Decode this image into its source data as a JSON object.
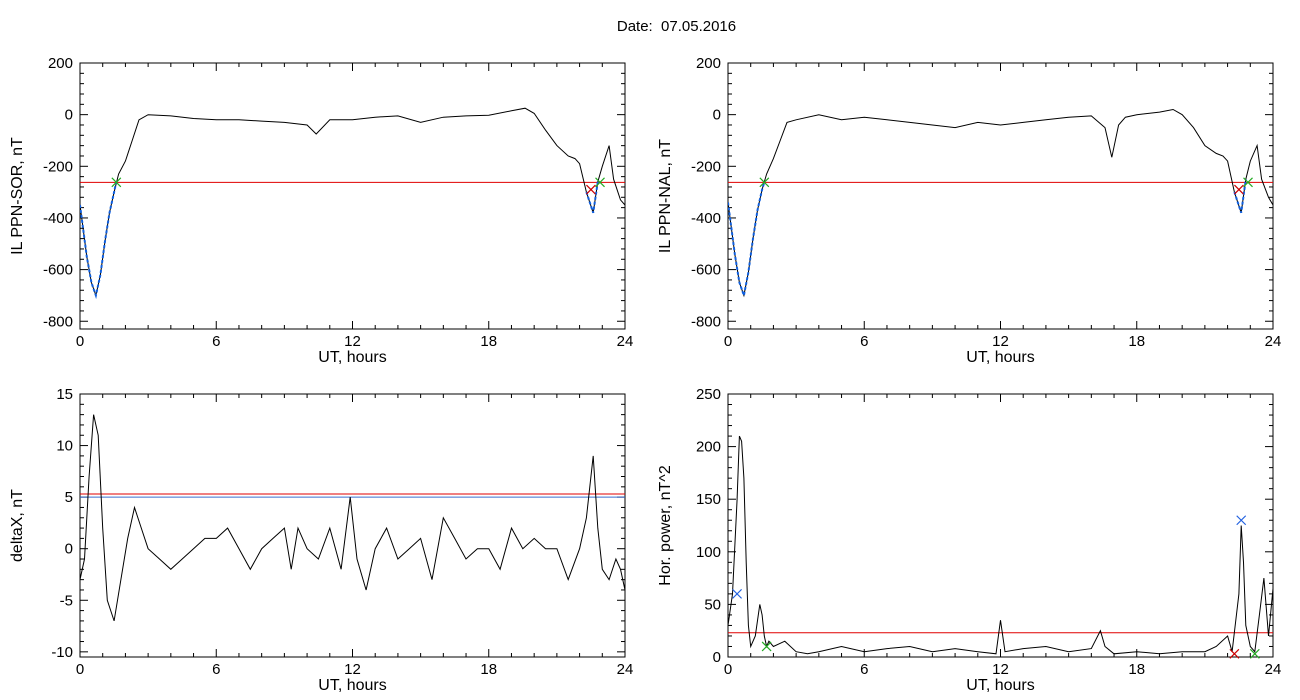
{
  "header": {
    "date_title": "Date:  07.05.2016"
  },
  "colors": {
    "line": "#000000",
    "threshold": "#e00000",
    "threshold2": "#3a6fd0",
    "highlight": "#1060e0",
    "marker_green": "#22aa22",
    "marker_red": "#cc0000",
    "marker_blue": "#2060e0"
  },
  "chart_data": [
    {
      "type": "line",
      "xlabel": "UT, hours",
      "ylabel": "IL PPN-SOR, nT",
      "xlim": [
        0,
        24
      ],
      "ylim": [
        -830,
        200
      ],
      "xticks": [
        0,
        6,
        12,
        18,
        24
      ],
      "yticks": [
        200,
        0,
        -200,
        -400,
        -600,
        -800
      ],
      "series": [
        {
          "x": [
            0,
            0.3,
            0.5,
            0.7,
            0.9,
            1.1,
            1.3,
            1.5,
            1.7,
            2.0,
            2.3,
            2.6,
            3,
            4,
            5,
            6,
            7,
            8,
            9,
            10,
            10.4,
            11,
            12,
            13,
            14,
            15,
            16,
            17,
            18,
            19,
            19.6,
            20,
            20.5,
            21,
            21.5,
            21.8,
            22,
            22.3,
            22.6,
            22.8,
            23,
            23.3,
            23.5,
            23.8,
            24
          ],
          "y": [
            -350,
            -550,
            -650,
            -700,
            -620,
            -490,
            -380,
            -300,
            -230,
            -180,
            -100,
            -20,
            0,
            -5,
            -15,
            -20,
            -20,
            -25,
            -30,
            -40,
            -75,
            -20,
            -20,
            -10,
            -5,
            -30,
            -10,
            -5,
            -2,
            15,
            25,
            5,
            -60,
            -120,
            -160,
            -170,
            -190,
            -300,
            -380,
            -260,
            -200,
            -120,
            -250,
            -330,
            -350
          ]
        }
      ],
      "highlight": {
        "x": [
          0,
          0.3,
          0.5,
          0.7,
          0.9,
          1.1,
          1.3,
          1.5,
          1.6
        ],
        "y": [
          -350,
          -550,
          -650,
          -700,
          -620,
          -490,
          -380,
          -300,
          -260
        ]
      },
      "highlight2": {
        "x": [
          22.3,
          22.6,
          22.8
        ],
        "y": [
          -300,
          -380,
          -260
        ]
      },
      "threshold": [
        -262
      ],
      "markers": [
        {
          "x": 1.6,
          "y": -262,
          "color": "green"
        },
        {
          "x": 22.9,
          "y": -262,
          "color": "green"
        },
        {
          "x": 22.5,
          "y": -290,
          "color": "red"
        }
      ]
    },
    {
      "type": "line",
      "xlabel": "UT, hours",
      "ylabel": "IL PPN-NAL, nT",
      "xlim": [
        0,
        24
      ],
      "ylim": [
        -830,
        200
      ],
      "xticks": [
        0,
        6,
        12,
        18,
        24
      ],
      "yticks": [
        200,
        0,
        -200,
        -400,
        -600,
        -800
      ],
      "series": [
        {
          "x": [
            0,
            0.3,
            0.5,
            0.7,
            0.9,
            1.1,
            1.3,
            1.5,
            1.7,
            2.0,
            2.3,
            2.6,
            3,
            4,
            5,
            6,
            7,
            8,
            9,
            10,
            11,
            12,
            13,
            14,
            15,
            16,
            16.6,
            16.9,
            17.2,
            17.5,
            18,
            19,
            19.6,
            20,
            20.5,
            21,
            21.5,
            21.8,
            22,
            22.3,
            22.6,
            22.8,
            23,
            23.3,
            23.5,
            23.8,
            24
          ],
          "y": [
            -340,
            -540,
            -650,
            -700,
            -610,
            -480,
            -370,
            -290,
            -230,
            -170,
            -100,
            -30,
            -20,
            0,
            -20,
            -10,
            -20,
            -30,
            -40,
            -50,
            -30,
            -40,
            -30,
            -20,
            -10,
            -5,
            -50,
            -165,
            -40,
            -10,
            0,
            10,
            20,
            0,
            -50,
            -120,
            -150,
            -160,
            -180,
            -300,
            -380,
            -250,
            -180,
            -120,
            -250,
            -320,
            -350
          ]
        }
      ],
      "highlight": {
        "x": [
          0,
          0.3,
          0.5,
          0.7,
          0.9,
          1.1,
          1.3,
          1.5,
          1.6
        ],
        "y": [
          -340,
          -540,
          -650,
          -700,
          -610,
          -480,
          -370,
          -290,
          -262
        ]
      },
      "highlight2": {
        "x": [
          22.3,
          22.6,
          22.8
        ],
        "y": [
          -300,
          -380,
          -250
        ]
      },
      "threshold": [
        -262
      ],
      "markers": [
        {
          "x": 1.6,
          "y": -262,
          "color": "green"
        },
        {
          "x": 22.9,
          "y": -262,
          "color": "green"
        },
        {
          "x": 22.5,
          "y": -290,
          "color": "red"
        }
      ]
    },
    {
      "type": "line",
      "xlabel": "UT, hours",
      "ylabel": "deltaX, nT",
      "xlim": [
        0,
        24
      ],
      "ylim": [
        -10.5,
        15
      ],
      "xticks": [
        0,
        6,
        12,
        18,
        24
      ],
      "yticks": [
        15,
        10,
        5,
        0,
        -5,
        -10
      ],
      "series": [
        {
          "x": [
            0,
            0.2,
            0.4,
            0.6,
            0.8,
            1.0,
            1.2,
            1.5,
            1.8,
            2.1,
            2.4,
            2.7,
            3,
            3.5,
            4,
            4.5,
            5,
            5.5,
            6,
            6.5,
            7,
            7.5,
            8,
            8.5,
            9,
            9.3,
            9.6,
            10,
            10.5,
            11,
            11.5,
            11.9,
            12.2,
            12.6,
            13,
            13.5,
            14,
            14.5,
            15,
            15.5,
            16,
            16.5,
            17,
            17.5,
            18,
            18.5,
            19,
            19.5,
            20,
            20.5,
            21,
            21.5,
            22,
            22.3,
            22.6,
            22.8,
            23,
            23.3,
            23.6,
            23.8,
            24
          ],
          "y": [
            -3,
            -1,
            7,
            13,
            11,
            2,
            -5,
            -7,
            -3,
            1,
            4,
            2,
            0,
            -1,
            -2,
            -1,
            0,
            1,
            1,
            2,
            0,
            -2,
            0,
            1,
            2,
            -2,
            2,
            0,
            -1,
            2,
            -2,
            5,
            -1,
            -4,
            0,
            2,
            -1,
            0,
            1,
            -3,
            3,
            1,
            -1,
            0,
            0,
            -2,
            2,
            0,
            1,
            0,
            0,
            -3,
            0,
            3,
            9,
            2,
            -2,
            -3,
            -1,
            -2,
            -4
          ]
        }
      ],
      "threshold": [
        5.3
      ],
      "threshold2": [
        5.0
      ]
    },
    {
      "type": "line",
      "xlabel": "UT, hours",
      "ylabel": "Hor. power, nT^2",
      "xlim": [
        0,
        24
      ],
      "ylim": [
        0,
        250
      ],
      "xticks": [
        0,
        6,
        12,
        18,
        24
      ],
      "yticks": [
        250,
        200,
        150,
        100,
        50,
        0
      ],
      "series": [
        {
          "x": [
            0,
            0.2,
            0.4,
            0.5,
            0.6,
            0.7,
            0.8,
            0.9,
            1.0,
            1.2,
            1.4,
            1.5,
            1.6,
            1.7,
            1.8,
            2,
            2.5,
            3,
            3.5,
            4,
            5,
            6,
            7,
            8,
            9,
            10,
            11,
            11.8,
            12,
            12.2,
            13,
            14,
            15,
            16,
            16.4,
            16.6,
            17,
            18,
            19,
            20,
            21,
            21.5,
            22,
            22.2,
            22.5,
            22.6,
            22.7,
            22.8,
            23,
            23.2,
            23.4,
            23.6,
            23.8,
            24
          ],
          "y": [
            30,
            60,
            150,
            210,
            205,
            170,
            90,
            30,
            10,
            20,
            50,
            40,
            20,
            10,
            15,
            10,
            15,
            5,
            3,
            5,
            10,
            5,
            8,
            10,
            5,
            8,
            5,
            3,
            35,
            5,
            8,
            10,
            5,
            8,
            25,
            10,
            3,
            5,
            3,
            5,
            5,
            10,
            20,
            5,
            60,
            125,
            90,
            30,
            10,
            5,
            40,
            75,
            20,
            65
          ]
        }
      ],
      "threshold": [
        23
      ],
      "markers": [
        {
          "x": 0.4,
          "y": 60,
          "color": "blue"
        },
        {
          "x": 1.7,
          "y": 10,
          "color": "green"
        },
        {
          "x": 22.6,
          "y": 130,
          "color": "blue"
        },
        {
          "x": 22.3,
          "y": 3,
          "color": "red"
        },
        {
          "x": 23.2,
          "y": 3,
          "color": "green"
        }
      ]
    }
  ]
}
